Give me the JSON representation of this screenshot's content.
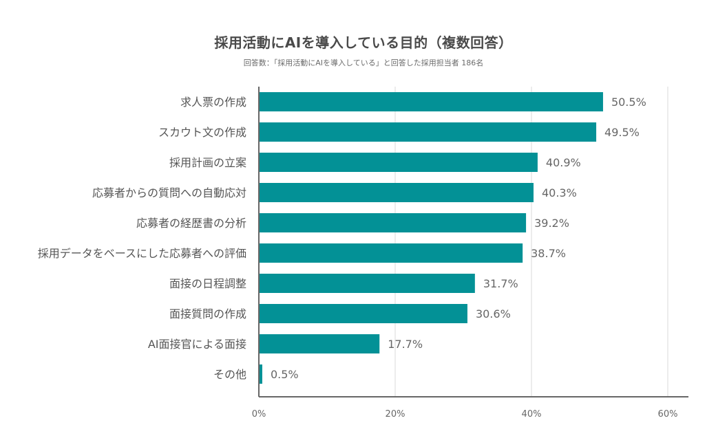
{
  "chart_data": {
    "type": "bar",
    "orientation": "horizontal",
    "title": "採用活動にAIを導入している目的（複数回答）",
    "subtitle": "回答数：「採用活動にAIを導入している」と回答した採用担当者 186名",
    "categories": [
      "求人票の作成",
      "スカウト文の作成",
      "採用計画の立案",
      "応募者からの質問への自動応対",
      "応募者の経歴書の分析",
      "採用データをベースにした応募者への評価",
      "面接の日程調整",
      "面接質問の作成",
      "AI面接官による面接",
      "その他"
    ],
    "values": [
      50.5,
      49.5,
      40.9,
      40.3,
      39.2,
      38.7,
      31.7,
      30.6,
      17.7,
      0.5
    ],
    "value_labels": [
      "50.5%",
      "49.5%",
      "40.9%",
      "40.3%",
      "39.2%",
      "38.7%",
      "31.7%",
      "30.6%",
      "17.7%",
      "0.5%"
    ],
    "xlim": [
      0,
      60
    ],
    "x_ticks": [
      0,
      20,
      40,
      60
    ],
    "x_tick_labels": [
      "0%",
      "20%",
      "40%",
      "60%"
    ],
    "grid": true,
    "bar_color": "#039196"
  }
}
